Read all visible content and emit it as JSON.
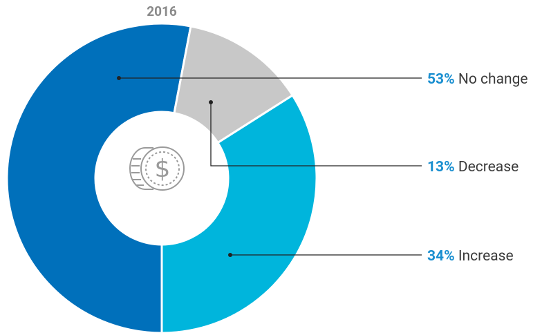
{
  "chart_data": {
    "type": "donut",
    "title": "2016",
    "categories": [
      "No change",
      "Decrease",
      "Increase"
    ],
    "values": [
      53,
      13,
      34
    ],
    "value_labels": [
      "53%",
      "13%",
      "34%"
    ],
    "colors": [
      "#0070bb",
      "#c8c8c8",
      "#00b5dc"
    ]
  }
}
